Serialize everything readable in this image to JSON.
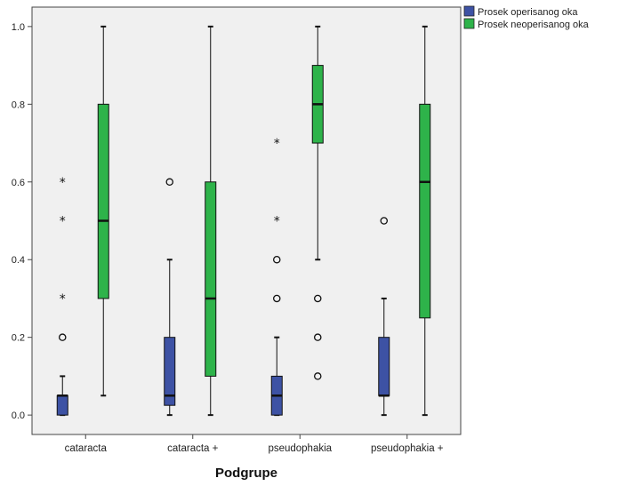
{
  "chart_data": {
    "type": "boxplot",
    "title": "",
    "xlabel": "Podgrupe",
    "ylabel": "",
    "ylim": [
      -0.05,
      1.05
    ],
    "yticks": [
      "0.0",
      "0.2",
      "0.4",
      "0.6",
      "0.8",
      "1.0"
    ],
    "categories": [
      "cataracta",
      "cataracta +",
      "pseudophakia",
      "pseudophakia +"
    ],
    "grid": false,
    "plot_background": "#f0f0f0",
    "legend_position": "top-right",
    "series": [
      {
        "name": "Prosek operisanog oka",
        "color": "#3d52a4",
        "boxes": [
          {
            "min": 0.0,
            "q1": 0.0,
            "median": 0.05,
            "q3": 0.05,
            "max": 0.1,
            "outliers": [
              {
                "value": 0.2,
                "marker": "circle"
              },
              {
                "value": 0.3,
                "marker": "star"
              },
              {
                "value": 0.5,
                "marker": "star"
              },
              {
                "value": 0.6,
                "marker": "star"
              }
            ]
          },
          {
            "min": 0.0,
            "q1": 0.025,
            "median": 0.05,
            "q3": 0.2,
            "max": 0.4,
            "outliers": [
              {
                "value": 0.6,
                "marker": "circle"
              }
            ]
          },
          {
            "min": 0.0,
            "q1": 0.0,
            "median": 0.05,
            "q3": 0.1,
            "max": 0.2,
            "outliers": [
              {
                "value": 0.3,
                "marker": "circle"
              },
              {
                "value": 0.4,
                "marker": "circle"
              },
              {
                "value": 0.5,
                "marker": "star"
              },
              {
                "value": 0.7,
                "marker": "star"
              }
            ]
          },
          {
            "min": 0.0,
            "q1": 0.05,
            "median": 0.05,
            "q3": 0.2,
            "max": 0.3,
            "outliers": [
              {
                "value": 0.5,
                "marker": "circle"
              }
            ]
          }
        ]
      },
      {
        "name": "Prosek neoperisanog oka",
        "color": "#2eb34a",
        "boxes": [
          {
            "min": 0.05,
            "q1": 0.3,
            "median": 0.5,
            "q3": 0.8,
            "max": 1.0,
            "outliers": []
          },
          {
            "min": 0.0,
            "q1": 0.1,
            "median": 0.3,
            "q3": 0.6,
            "max": 1.0,
            "outliers": []
          },
          {
            "min": 0.4,
            "q1": 0.7,
            "median": 0.8,
            "q3": 0.9,
            "max": 1.0,
            "outliers": [
              {
                "value": 0.1,
                "marker": "circle"
              },
              {
                "value": 0.2,
                "marker": "circle"
              },
              {
                "value": 0.3,
                "marker": "circle"
              }
            ]
          },
          {
            "min": 0.0,
            "q1": 0.25,
            "median": 0.6,
            "q3": 0.8,
            "max": 1.0,
            "outliers": []
          }
        ]
      }
    ]
  }
}
